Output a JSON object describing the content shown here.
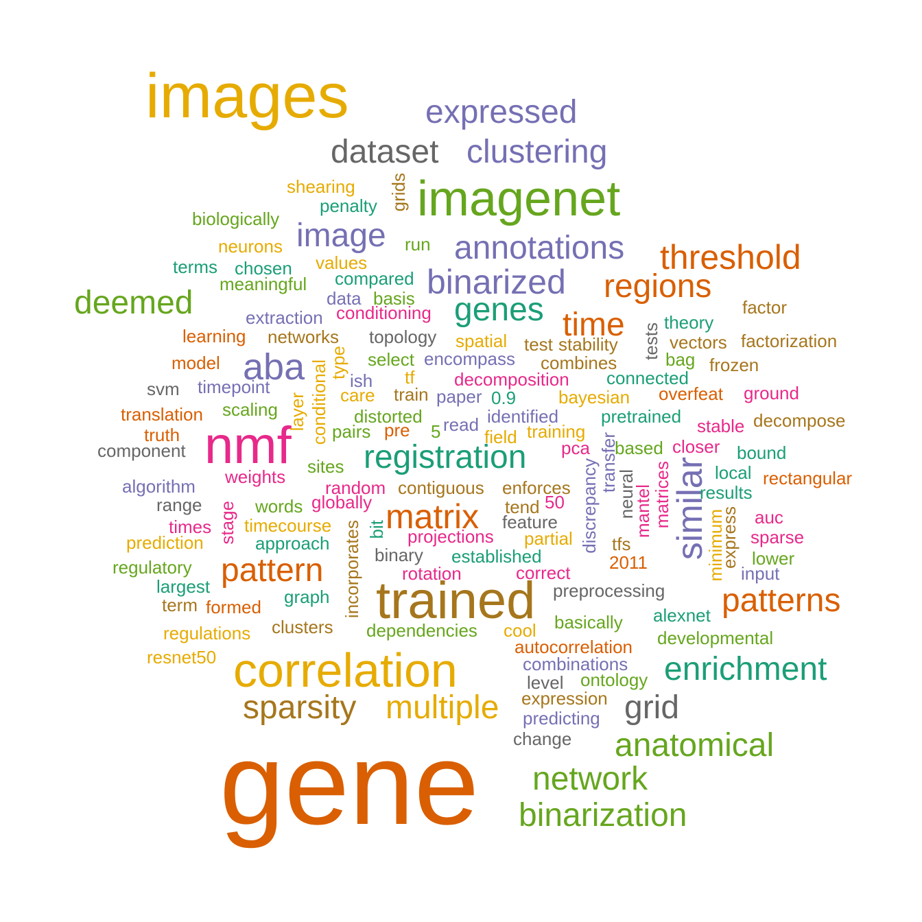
{
  "palette": {
    "orange": "#D95F02",
    "gold": "#E6AB02",
    "purple": "#7570B3",
    "green": "#66A61E",
    "teal": "#1B9E77",
    "brown": "#A6761D",
    "gray": "#666666",
    "pink": "#E7298A"
  },
  "words": [
    {
      "text": "gene",
      "color": "orange"
    },
    {
      "text": "images",
      "color": "gold"
    },
    {
      "text": "trained",
      "color": "brown"
    },
    {
      "text": "correlation",
      "color": "gold"
    },
    {
      "text": "imagenet",
      "color": "green"
    },
    {
      "text": "nmf",
      "color": "pink"
    },
    {
      "text": "matrix",
      "color": "orange"
    },
    {
      "text": "registration",
      "color": "teal"
    },
    {
      "text": "expressed",
      "color": "purple"
    },
    {
      "text": "clustering",
      "color": "purple"
    },
    {
      "text": "dataset",
      "color": "gray"
    },
    {
      "text": "annotations",
      "color": "purple"
    },
    {
      "text": "binarized",
      "color": "purple"
    },
    {
      "text": "threshold",
      "color": "orange"
    },
    {
      "text": "regions",
      "color": "orange"
    },
    {
      "text": "genes",
      "color": "teal"
    },
    {
      "text": "time",
      "color": "orange"
    },
    {
      "text": "image",
      "color": "purple"
    },
    {
      "text": "deemed",
      "color": "green"
    },
    {
      "text": "aba",
      "color": "purple"
    },
    {
      "text": "similar",
      "color": "purple",
      "vertical": true
    },
    {
      "text": "pattern",
      "color": "orange"
    },
    {
      "text": "patterns",
      "color": "orange"
    },
    {
      "text": "enrichment",
      "color": "teal"
    },
    {
      "text": "anatomical",
      "color": "green"
    },
    {
      "text": "network",
      "color": "green"
    },
    {
      "text": "binarization",
      "color": "green"
    },
    {
      "text": "sparsity",
      "color": "brown"
    },
    {
      "text": "multiple",
      "color": "gold"
    },
    {
      "text": "grid",
      "color": "gray"
    },
    {
      "text": "shearing",
      "color": "gold"
    },
    {
      "text": "penalty",
      "color": "teal"
    },
    {
      "text": "grids",
      "color": "brown",
      "vertical": true
    },
    {
      "text": "biologically",
      "color": "green"
    },
    {
      "text": "neurons",
      "color": "gold"
    },
    {
      "text": "run",
      "color": "green"
    },
    {
      "text": "terms",
      "color": "teal"
    },
    {
      "text": "chosen",
      "color": "teal"
    },
    {
      "text": "values",
      "color": "gold"
    },
    {
      "text": "meaningful",
      "color": "green"
    },
    {
      "text": "compared",
      "color": "teal"
    },
    {
      "text": "data",
      "color": "purple"
    },
    {
      "text": "basis",
      "color": "green"
    },
    {
      "text": "factor",
      "color": "brown"
    },
    {
      "text": "extraction",
      "color": "purple"
    },
    {
      "text": "conditioning",
      "color": "pink"
    },
    {
      "text": "theory",
      "color": "teal"
    },
    {
      "text": "learning",
      "color": "orange"
    },
    {
      "text": "networks",
      "color": "brown"
    },
    {
      "text": "topology",
      "color": "gray"
    },
    {
      "text": "spatial",
      "color": "gold"
    },
    {
      "text": "test",
      "color": "brown"
    },
    {
      "text": "stability",
      "color": "brown"
    },
    {
      "text": "tests",
      "color": "gray",
      "vertical": true
    },
    {
      "text": "vectors",
      "color": "brown"
    },
    {
      "text": "factorization",
      "color": "brown"
    },
    {
      "text": "model",
      "color": "orange"
    },
    {
      "text": "type",
      "color": "gold",
      "vertical": true
    },
    {
      "text": "select",
      "color": "green"
    },
    {
      "text": "encompass",
      "color": "purple"
    },
    {
      "text": "combines",
      "color": "brown"
    },
    {
      "text": "bag",
      "color": "green"
    },
    {
      "text": "frozen",
      "color": "brown"
    },
    {
      "text": "svm",
      "color": "gray"
    },
    {
      "text": "timepoint",
      "color": "purple"
    },
    {
      "text": "conditional",
      "color": "gold",
      "vertical": true
    },
    {
      "text": "ish",
      "color": "purple"
    },
    {
      "text": "tf",
      "color": "gold"
    },
    {
      "text": "decomposition",
      "color": "pink"
    },
    {
      "text": "connected",
      "color": "teal"
    },
    {
      "text": "layer",
      "color": "gold",
      "vertical": true
    },
    {
      "text": "care",
      "color": "gold"
    },
    {
      "text": "train",
      "color": "brown"
    },
    {
      "text": "paper",
      "color": "purple"
    },
    {
      "text": "0.9",
      "color": "teal"
    },
    {
      "text": "bayesian",
      "color": "gold"
    },
    {
      "text": "overfeat",
      "color": "orange"
    },
    {
      "text": "ground",
      "color": "pink"
    },
    {
      "text": "translation",
      "color": "orange"
    },
    {
      "text": "scaling",
      "color": "green"
    },
    {
      "text": "distorted",
      "color": "green"
    },
    {
      "text": "identified",
      "color": "purple"
    },
    {
      "text": "pretrained",
      "color": "teal"
    },
    {
      "text": "stable",
      "color": "pink"
    },
    {
      "text": "decompose",
      "color": "brown"
    },
    {
      "text": "truth",
      "color": "orange"
    },
    {
      "text": "pairs",
      "color": "green"
    },
    {
      "text": "pre",
      "color": "orange"
    },
    {
      "text": "5",
      "color": "green"
    },
    {
      "text": "read",
      "color": "purple"
    },
    {
      "text": "training",
      "color": "gold"
    },
    {
      "text": "field",
      "color": "gold"
    },
    {
      "text": "component",
      "color": "gray"
    },
    {
      "text": "pca",
      "color": "pink"
    },
    {
      "text": "transfer",
      "color": "purple",
      "vertical": true
    },
    {
      "text": "based",
      "color": "green"
    },
    {
      "text": "closer",
      "color": "pink"
    },
    {
      "text": "bound",
      "color": "teal"
    },
    {
      "text": "sites",
      "color": "green"
    },
    {
      "text": "local",
      "color": "teal"
    },
    {
      "text": "weights",
      "color": "pink"
    },
    {
      "text": "discrepancy",
      "color": "purple",
      "vertical": true
    },
    {
      "text": "neural",
      "color": "gray",
      "vertical": true
    },
    {
      "text": "matrices",
      "color": "pink",
      "vertical": true
    },
    {
      "text": "rectangular",
      "color": "orange"
    },
    {
      "text": "algorithm",
      "color": "purple"
    },
    {
      "text": "random",
      "color": "pink"
    },
    {
      "text": "contiguous",
      "color": "brown"
    },
    {
      "text": "enforces",
      "color": "brown"
    },
    {
      "text": "results",
      "color": "teal"
    },
    {
      "text": "range",
      "color": "gray"
    },
    {
      "text": "words",
      "color": "green"
    },
    {
      "text": "globally",
      "color": "pink"
    },
    {
      "text": "tend",
      "color": "brown"
    },
    {
      "text": "50",
      "color": "pink"
    },
    {
      "text": "mantel",
      "color": "pink",
      "vertical": true
    },
    {
      "text": "minimum",
      "color": "gold",
      "vertical": true
    },
    {
      "text": "express",
      "color": "brown",
      "vertical": true
    },
    {
      "text": "auc",
      "color": "pink"
    },
    {
      "text": "stage",
      "color": "pink",
      "vertical": true
    },
    {
      "text": "times",
      "color": "pink"
    },
    {
      "text": "timecourse",
      "color": "gold"
    },
    {
      "text": "bit",
      "color": "teal",
      "vertical": true
    },
    {
      "text": "feature",
      "color": "gray"
    },
    {
      "text": "projections",
      "color": "pink"
    },
    {
      "text": "partial",
      "color": "gold"
    },
    {
      "text": "sparse",
      "color": "pink"
    },
    {
      "text": "prediction",
      "color": "gold"
    },
    {
      "text": "approach",
      "color": "teal"
    },
    {
      "text": "tfs",
      "color": "brown"
    },
    {
      "text": "incorporates",
      "color": "brown",
      "vertical": true
    },
    {
      "text": "binary",
      "color": "gray"
    },
    {
      "text": "established",
      "color": "teal"
    },
    {
      "text": "lower",
      "color": "green"
    },
    {
      "text": "regulatory",
      "color": "green"
    },
    {
      "text": "2011",
      "color": "orange"
    },
    {
      "text": "rotation",
      "color": "pink"
    },
    {
      "text": "correct",
      "color": "pink"
    },
    {
      "text": "input",
      "color": "purple"
    },
    {
      "text": "largest",
      "color": "teal"
    },
    {
      "text": "preprocessing",
      "color": "gray"
    },
    {
      "text": "graph",
      "color": "teal"
    },
    {
      "text": "term",
      "color": "brown"
    },
    {
      "text": "formed",
      "color": "orange"
    },
    {
      "text": "alexnet",
      "color": "teal"
    },
    {
      "text": "basically",
      "color": "green"
    },
    {
      "text": "clusters",
      "color": "brown"
    },
    {
      "text": "regulations",
      "color": "gold"
    },
    {
      "text": "dependencies",
      "color": "green"
    },
    {
      "text": "cool",
      "color": "gold"
    },
    {
      "text": "developmental",
      "color": "green"
    },
    {
      "text": "autocorrelation",
      "color": "orange"
    },
    {
      "text": "resnet50",
      "color": "gold"
    },
    {
      "text": "combinations",
      "color": "purple"
    },
    {
      "text": "level",
      "color": "gray"
    },
    {
      "text": "ontology",
      "color": "green"
    },
    {
      "text": "expression",
      "color": "brown"
    },
    {
      "text": "predicting",
      "color": "purple"
    },
    {
      "text": "change",
      "color": "gray"
    }
  ]
}
